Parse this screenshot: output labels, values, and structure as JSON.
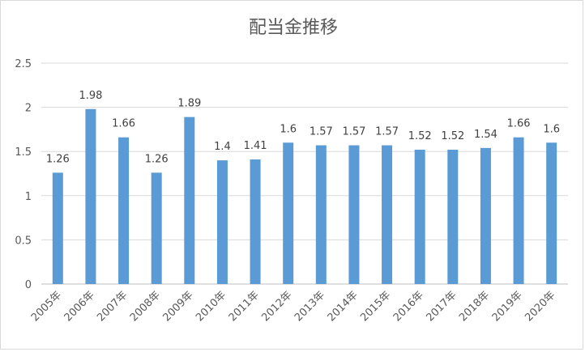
{
  "chart_data": {
    "type": "bar",
    "title": "配当金推移",
    "xlabel": "",
    "ylabel": "",
    "categories": [
      "2005年",
      "2006年",
      "2007年",
      "2008年",
      "2009年",
      "2010年",
      "2011年",
      "2012年",
      "2013年",
      "2014年",
      "2015年",
      "2016年",
      "2017年",
      "2018年",
      "2019年",
      "2020年"
    ],
    "values": [
      1.26,
      1.98,
      1.66,
      1.26,
      1.89,
      1.4,
      1.41,
      1.6,
      1.57,
      1.57,
      1.57,
      1.52,
      1.52,
      1.54,
      1.66,
      1.6
    ],
    "data_labels": [
      "1.26",
      "1.98",
      "1.66",
      "1.26",
      "1.89",
      "1.4",
      "1.41",
      "1.6",
      "1.57",
      "1.57",
      "1.57",
      "1.52",
      "1.52",
      "1.54",
      "1.66",
      "1.6"
    ],
    "yticks": [
      "0",
      "0.5",
      "1",
      "1.5",
      "2",
      "2.5"
    ],
    "ylim": [
      0,
      2.5
    ],
    "grid": true,
    "legend": "none",
    "bar_color": "#5b9bd5"
  }
}
